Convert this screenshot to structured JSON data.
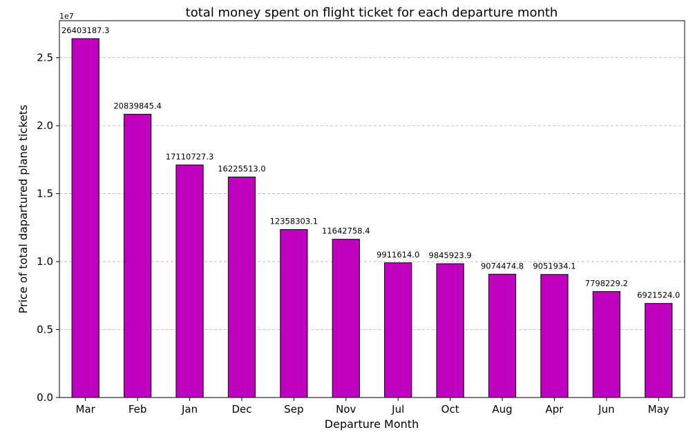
{
  "chart_data": {
    "type": "bar",
    "title": "total money spent on flight ticket for each departure month",
    "xlabel": "Departure Month",
    "ylabel": "Price of total dapartured plane tickets",
    "y_offset_label": "1e7",
    "y_scale": 10000000,
    "categories": [
      "Mar",
      "Feb",
      "Jan",
      "Dec",
      "Sep",
      "Nov",
      "Jul",
      "Oct",
      "Aug",
      "Apr",
      "Jun",
      "May"
    ],
    "values": [
      26403187.3,
      20839845.4,
      17110727.3,
      16225513.0,
      12358303.1,
      11642758.4,
      9911614.0,
      9845923.9,
      9074474.8,
      9051934.1,
      7798229.2,
      6921524.0
    ],
    "data_labels": [
      "26403187.3",
      "20839845.4",
      "17110727.3",
      "16225513.0",
      "12358303.1",
      "11642758.4",
      "9911614.0",
      "9845923.9",
      "9074474.8",
      "9051934.1",
      "7798229.2",
      "6921524.0"
    ],
    "yticks": [
      0,
      5000000,
      10000000,
      15000000,
      20000000,
      25000000
    ],
    "ytick_labels": [
      "0.0",
      "0.5",
      "1.0",
      "1.5",
      "2.0",
      "2.5"
    ],
    "ylim": [
      0,
      27723346.7
    ],
    "grid": "y-dashed",
    "colors": {
      "bar": "#bf00bf",
      "edge": "#000000",
      "grid": "#b0b0b0"
    }
  }
}
